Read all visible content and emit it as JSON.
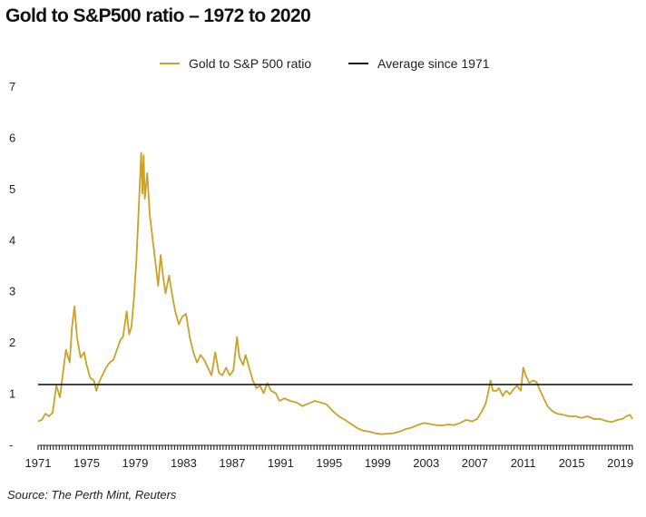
{
  "title": "Gold to S&P500 ratio – 1972 to 2020",
  "source": "Source: The Perth Mint, Reuters",
  "colors": {
    "gold": "#c9a227",
    "average": "#1a1a1a",
    "axis": "#222222"
  },
  "chart_data": {
    "type": "line",
    "title": "Gold to S&P500 ratio – 1972 to 2020",
    "xlabel": "",
    "ylabel": "",
    "xlim": [
      1971,
      2020
    ],
    "ylim": [
      0,
      7
    ],
    "x_ticks": [
      "1971",
      "1975",
      "1979",
      "1983",
      "1987",
      "1991",
      "1995",
      "1999",
      "2003",
      "2007",
      "2011",
      "2015",
      "2019"
    ],
    "y_ticks": [
      "-",
      "1",
      "2",
      "3",
      "4",
      "5",
      "6",
      "7"
    ],
    "legend_position": "top-center",
    "series": [
      {
        "name": "Gold to S&P 500 ratio",
        "color": "#c9a227",
        "points": [
          [
            1971.0,
            0.45
          ],
          [
            1971.3,
            0.48
          ],
          [
            1971.6,
            0.6
          ],
          [
            1971.9,
            0.55
          ],
          [
            1972.2,
            0.62
          ],
          [
            1972.5,
            1.15
          ],
          [
            1972.8,
            0.92
          ],
          [
            1973.0,
            1.3
          ],
          [
            1973.3,
            1.85
          ],
          [
            1973.6,
            1.6
          ],
          [
            1973.8,
            2.3
          ],
          [
            1974.0,
            2.7
          ],
          [
            1974.2,
            2.1
          ],
          [
            1974.5,
            1.7
          ],
          [
            1974.8,
            1.8
          ],
          [
            1975.0,
            1.55
          ],
          [
            1975.3,
            1.3
          ],
          [
            1975.6,
            1.25
          ],
          [
            1975.8,
            1.05
          ],
          [
            1976.0,
            1.2
          ],
          [
            1976.3,
            1.35
          ],
          [
            1976.6,
            1.5
          ],
          [
            1976.9,
            1.6
          ],
          [
            1977.2,
            1.65
          ],
          [
            1977.5,
            1.85
          ],
          [
            1977.8,
            2.05
          ],
          [
            1978.0,
            2.1
          ],
          [
            1978.3,
            2.6
          ],
          [
            1978.5,
            2.15
          ],
          [
            1978.7,
            2.3
          ],
          [
            1978.9,
            2.85
          ],
          [
            1979.1,
            3.6
          ],
          [
            1979.3,
            4.6
          ],
          [
            1979.5,
            5.7
          ],
          [
            1979.6,
            4.9
          ],
          [
            1979.7,
            5.65
          ],
          [
            1979.8,
            4.8
          ],
          [
            1980.0,
            5.3
          ],
          [
            1980.2,
            4.5
          ],
          [
            1980.5,
            3.9
          ],
          [
            1980.7,
            3.5
          ],
          [
            1980.9,
            3.1
          ],
          [
            1981.1,
            3.7
          ],
          [
            1981.3,
            3.3
          ],
          [
            1981.5,
            2.95
          ],
          [
            1981.8,
            3.3
          ],
          [
            1982.0,
            3.0
          ],
          [
            1982.3,
            2.6
          ],
          [
            1982.6,
            2.35
          ],
          [
            1982.9,
            2.5
          ],
          [
            1983.2,
            2.55
          ],
          [
            1983.5,
            2.1
          ],
          [
            1983.8,
            1.8
          ],
          [
            1984.1,
            1.6
          ],
          [
            1984.4,
            1.75
          ],
          [
            1984.7,
            1.65
          ],
          [
            1985.0,
            1.5
          ],
          [
            1985.3,
            1.35
          ],
          [
            1985.6,
            1.8
          ],
          [
            1985.9,
            1.4
          ],
          [
            1986.2,
            1.35
          ],
          [
            1986.5,
            1.5
          ],
          [
            1986.8,
            1.35
          ],
          [
            1987.1,
            1.45
          ],
          [
            1987.4,
            2.1
          ],
          [
            1987.6,
            1.7
          ],
          [
            1987.9,
            1.55
          ],
          [
            1988.1,
            1.75
          ],
          [
            1988.4,
            1.5
          ],
          [
            1988.7,
            1.25
          ],
          [
            1989.0,
            1.1
          ],
          [
            1989.3,
            1.15
          ],
          [
            1989.6,
            1.0
          ],
          [
            1989.9,
            1.2
          ],
          [
            1990.2,
            1.05
          ],
          [
            1990.6,
            1.0
          ],
          [
            1990.9,
            0.85
          ],
          [
            1991.3,
            0.9
          ],
          [
            1991.8,
            0.85
          ],
          [
            1992.3,
            0.82
          ],
          [
            1992.8,
            0.75
          ],
          [
            1993.3,
            0.8
          ],
          [
            1993.8,
            0.85
          ],
          [
            1994.3,
            0.82
          ],
          [
            1994.8,
            0.78
          ],
          [
            1995.3,
            0.65
          ],
          [
            1995.8,
            0.55
          ],
          [
            1996.3,
            0.48
          ],
          [
            1996.8,
            0.4
          ],
          [
            1997.3,
            0.32
          ],
          [
            1997.8,
            0.27
          ],
          [
            1998.3,
            0.25
          ],
          [
            1998.8,
            0.22
          ],
          [
            1999.3,
            0.2
          ],
          [
            1999.8,
            0.21
          ],
          [
            2000.3,
            0.22
          ],
          [
            2000.8,
            0.25
          ],
          [
            2001.3,
            0.3
          ],
          [
            2001.8,
            0.33
          ],
          [
            2002.3,
            0.38
          ],
          [
            2002.8,
            0.42
          ],
          [
            2003.3,
            0.4
          ],
          [
            2003.8,
            0.38
          ],
          [
            2004.3,
            0.37
          ],
          [
            2004.8,
            0.39
          ],
          [
            2005.3,
            0.38
          ],
          [
            2005.8,
            0.42
          ],
          [
            2006.3,
            0.48
          ],
          [
            2006.8,
            0.45
          ],
          [
            2007.2,
            0.5
          ],
          [
            2007.6,
            0.65
          ],
          [
            2007.9,
            0.8
          ],
          [
            2008.1,
            1.0
          ],
          [
            2008.3,
            1.25
          ],
          [
            2008.5,
            1.05
          ],
          [
            2008.8,
            1.05
          ],
          [
            2009.0,
            1.1
          ],
          [
            2009.3,
            0.95
          ],
          [
            2009.6,
            1.05
          ],
          [
            2009.9,
            0.98
          ],
          [
            2010.2,
            1.08
          ],
          [
            2010.5,
            1.15
          ],
          [
            2010.8,
            1.05
          ],
          [
            2011.0,
            1.5
          ],
          [
            2011.2,
            1.35
          ],
          [
            2011.5,
            1.2
          ],
          [
            2011.8,
            1.25
          ],
          [
            2012.1,
            1.22
          ],
          [
            2012.4,
            1.05
          ],
          [
            2012.7,
            0.9
          ],
          [
            2013.0,
            0.75
          ],
          [
            2013.4,
            0.65
          ],
          [
            2013.8,
            0.6
          ],
          [
            2014.3,
            0.58
          ],
          [
            2014.8,
            0.55
          ],
          [
            2015.3,
            0.55
          ],
          [
            2015.8,
            0.52
          ],
          [
            2016.3,
            0.55
          ],
          [
            2016.8,
            0.5
          ],
          [
            2017.3,
            0.5
          ],
          [
            2017.8,
            0.46
          ],
          [
            2018.3,
            0.44
          ],
          [
            2018.8,
            0.48
          ],
          [
            2019.2,
            0.5
          ],
          [
            2019.5,
            0.55
          ],
          [
            2019.8,
            0.58
          ],
          [
            2020.0,
            0.5
          ]
        ]
      },
      {
        "name": "Average since 1971",
        "color": "#1a1a1a",
        "constant": 1.17
      }
    ]
  }
}
